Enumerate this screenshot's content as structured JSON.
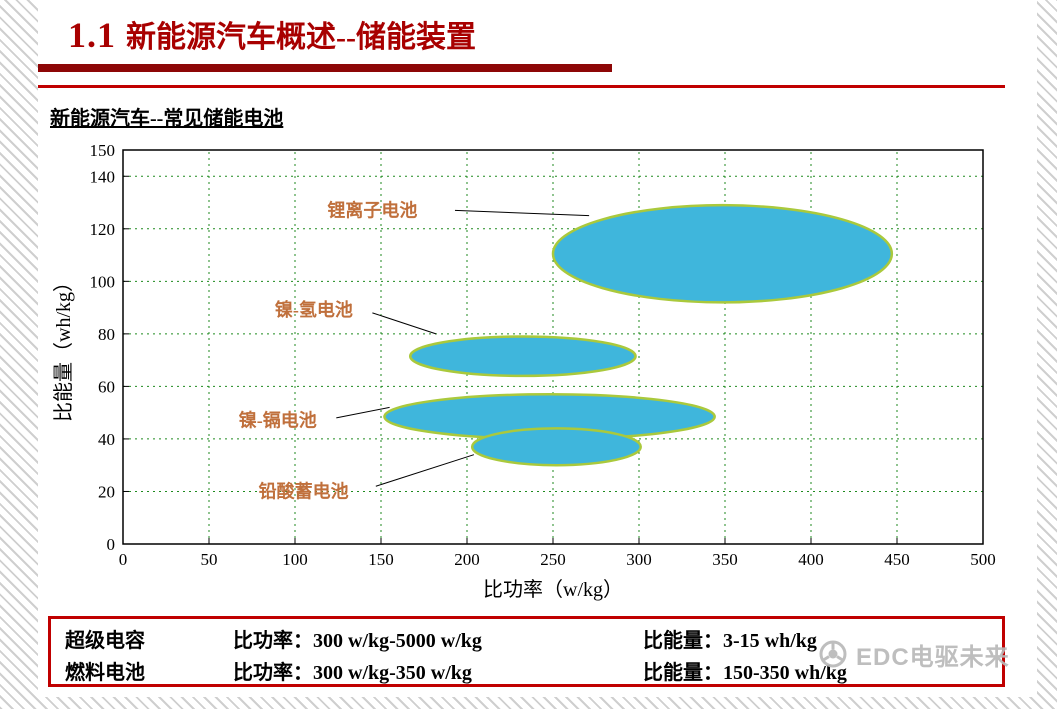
{
  "slide": {
    "title_number": "1.1",
    "title_text": "新能源汽车概述--储能装置",
    "subtitle": "新能源汽车--常见储能电池"
  },
  "chart_data": {
    "type": "scatter",
    "title": "",
    "xlabel": "比功率（w/kg）",
    "ylabel": "比能量（wh/kg）",
    "xlim": [
      0,
      500
    ],
    "ylim": [
      0,
      150
    ],
    "x_ticks": [
      0,
      50,
      100,
      150,
      200,
      250,
      300,
      350,
      400,
      450,
      500
    ],
    "y_ticks": [
      0,
      20,
      40,
      60,
      80,
      100,
      120,
      140,
      150
    ],
    "grid": true,
    "legend": "none",
    "series": [
      {
        "name": "锂离子电池",
        "shape": "ellipse",
        "x_range": [
          250,
          447
        ],
        "y_range": [
          92,
          129
        ],
        "label": {
          "x": 145,
          "y": 127
        },
        "leader": [
          [
            193,
            127
          ],
          [
            271,
            125
          ]
        ]
      },
      {
        "name": "镍-氢电池",
        "shape": "ellipse",
        "x_range": [
          167,
          298
        ],
        "y_range": [
          64,
          79
        ],
        "label": {
          "x": 111,
          "y": 89
        },
        "leader": [
          [
            145,
            88
          ],
          [
            182,
            80
          ]
        ]
      },
      {
        "name": "镍-镉电池",
        "shape": "ellipse",
        "x_range": [
          152,
          344
        ],
        "y_range": [
          40,
          57
        ],
        "label": {
          "x": 90,
          "y": 47
        },
        "leader": [
          [
            124,
            48
          ],
          [
            155,
            52
          ]
        ]
      },
      {
        "name": "铅酸蓄电池",
        "shape": "ellipse",
        "x_range": [
          203,
          301
        ],
        "y_range": [
          30,
          44
        ],
        "label": {
          "x": 105,
          "y": 20
        },
        "leader": [
          [
            147,
            22
          ],
          [
            204,
            34
          ]
        ]
      }
    ],
    "colors": {
      "ellipse_fill": "#3fb6dc",
      "ellipse_border": "#aac93c",
      "grid": "#1f8a1f",
      "label": "#c0703c",
      "axis": "#000000"
    }
  },
  "footer_box": {
    "rows": [
      {
        "name": "超级电容",
        "power": "比功率：300 w/kg-5000 w/kg",
        "energy": "比能量：3-15 wh/kg"
      },
      {
        "name": "燃料电池",
        "power": "比功率：300 w/kg-350 w/kg",
        "energy": "比能量：150-350 wh/kg"
      }
    ]
  },
  "watermark": {
    "text": "EDC电驱未来"
  }
}
